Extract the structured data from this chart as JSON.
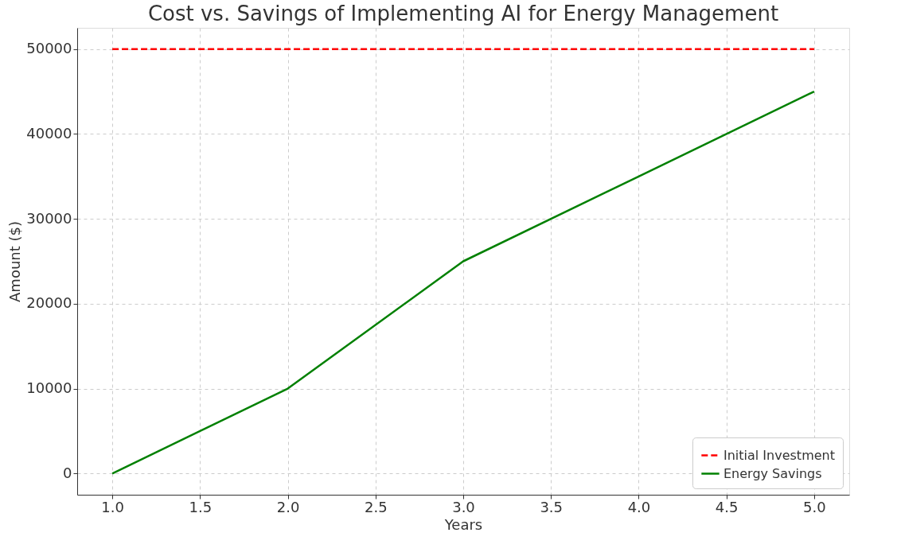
{
  "chart_data": {
    "type": "line",
    "title": "Cost vs. Savings of Implementing AI for Energy Management",
    "xlabel": "Years",
    "ylabel": "Amount ($)",
    "x": [
      1,
      2,
      3,
      4,
      5
    ],
    "series": [
      {
        "name": "Initial Investment",
        "color": "#ff0000",
        "line_style": "dashed",
        "values": [
          50000,
          50000,
          50000,
          50000,
          50000
        ]
      },
      {
        "name": "Energy Savings",
        "color": "#008000",
        "line_style": "solid",
        "values": [
          0,
          10000,
          25000,
          35000,
          45000
        ]
      }
    ],
    "xlim": [
      0.8,
      5.2
    ],
    "ylim": [
      -2500,
      52500
    ],
    "xticks": [
      {
        "value": 1,
        "label": "1.0"
      },
      {
        "value": 1.5,
        "label": "1.5"
      },
      {
        "value": 2,
        "label": "2.0"
      },
      {
        "value": 2.5,
        "label": "2.5"
      },
      {
        "value": 3,
        "label": "3.0"
      },
      {
        "value": 3.5,
        "label": "3.5"
      },
      {
        "value": 4,
        "label": "4.0"
      },
      {
        "value": 4.5,
        "label": "4.5"
      },
      {
        "value": 5,
        "label": "5.0"
      }
    ],
    "yticks": [
      0,
      10000,
      20000,
      30000,
      40000,
      50000
    ],
    "grid": true,
    "legend": "bottom right",
    "marker": "none"
  }
}
